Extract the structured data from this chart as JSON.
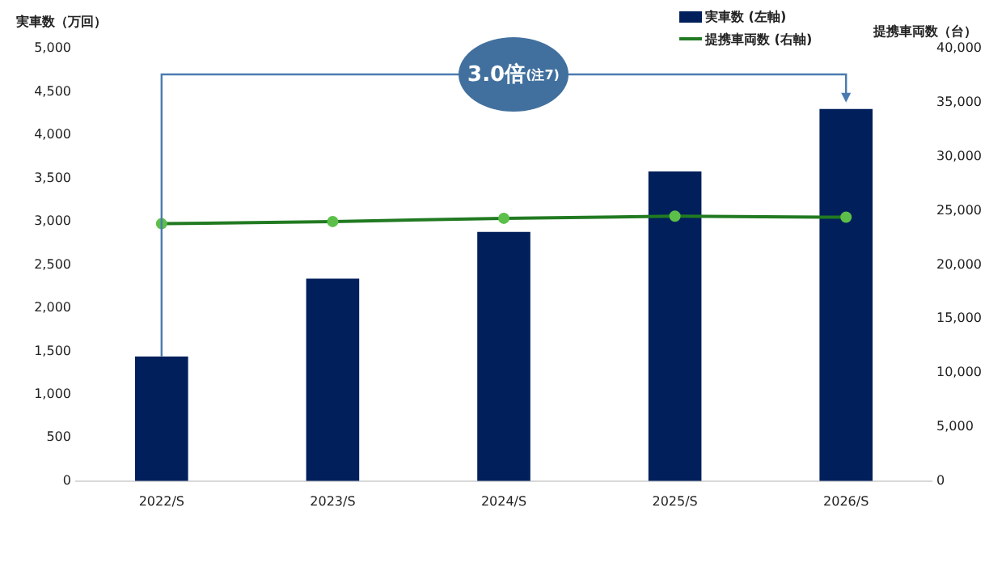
{
  "chart_data": {
    "type": "bar",
    "categories": [
      "2022/S",
      "2023/S",
      "2024/S",
      "2025/S",
      "2026/S"
    ],
    "ylabel": "実車数（万回）",
    "y2label": "提携車両数（台）",
    "series": [
      {
        "name": "実車数 (左軸)",
        "color": "#001f5b",
        "values": [
          1440,
          2340,
          2880,
          3580,
          4300
        ]
      },
      {
        "name": "提携車両数 (右軸)",
        "type": "line",
        "axis": "y2",
        "color": "#217a21",
        "values": [
          23800,
          24000,
          24300,
          24500,
          24400
        ]
      }
    ],
    "ylim": [
      0,
      5000
    ],
    "yticks": [
      {
        "value": 0,
        "label": "0"
      },
      {
        "value": 500,
        "label": "500"
      },
      {
        "value": 1000,
        "label": "1,000"
      },
      {
        "value": 1500,
        "label": "1,500"
      },
      {
        "value": 2000,
        "label": "2,000"
      },
      {
        "value": 2500,
        "label": "2,500"
      },
      {
        "value": 3000,
        "label": "3,000"
      },
      {
        "value": 3500,
        "label": "3,500"
      },
      {
        "value": 4000,
        "label": "4,000"
      },
      {
        "value": 4500,
        "label": "4,500"
      },
      {
        "value": 5000,
        "label": "5,000"
      }
    ],
    "y2lim": [
      0,
      40000
    ],
    "y2ticks": [
      {
        "value": 0,
        "label": "0"
      },
      {
        "value": 5000,
        "label": "5,000"
      },
      {
        "value": 10000,
        "label": "10,000"
      },
      {
        "value": 15000,
        "label": "15,000"
      },
      {
        "value": 20000,
        "label": "20,000"
      },
      {
        "value": 25000,
        "label": "25,000"
      },
      {
        "value": 30000,
        "label": "30,000"
      },
      {
        "value": 35000,
        "label": "35,000"
      },
      {
        "value": 40000,
        "label": "40,000"
      }
    ],
    "annotations": [
      "3.0倍$^{(注7)}$"
    ],
    "marker": "circle",
    "line_style": "solid",
    "grid": false,
    "legend": "top right"
  }
}
